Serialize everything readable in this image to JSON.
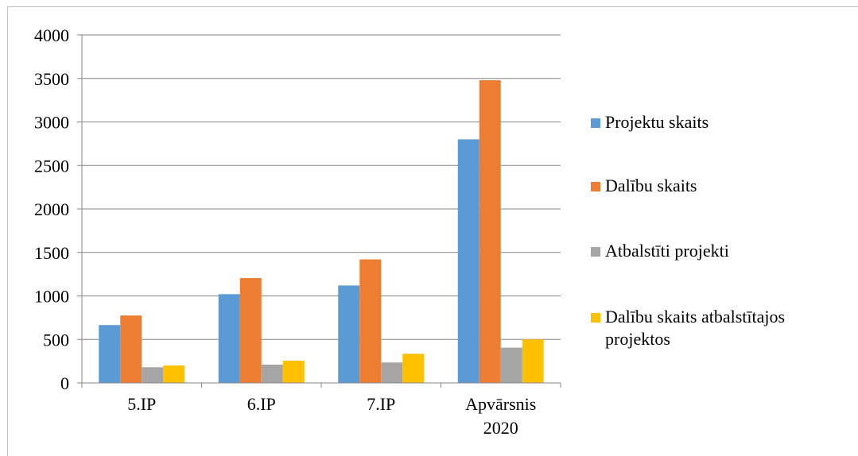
{
  "chart_data": {
    "type": "bar",
    "categories": [
      "5.IP",
      "6.IP",
      "7.IP",
      "Apvārsnis 2020"
    ],
    "series": [
      {
        "name": "Projektu skaits",
        "color": "#5B9BD5",
        "values": [
          665,
          1020,
          1120,
          2800
        ]
      },
      {
        "name": "Dalību skaits",
        "color": "#ED7D31",
        "values": [
          775,
          1205,
          1420,
          3480
        ]
      },
      {
        "name": "Atbalstīti projekti",
        "color": "#A5A5A5",
        "values": [
          180,
          210,
          235,
          405
        ]
      },
      {
        "name": "Dalību skaits atbalstītajos projektos",
        "color": "#FFC000",
        "values": [
          200,
          255,
          335,
          500
        ]
      }
    ],
    "ylim": [
      0,
      4000
    ],
    "yticks": [
      "0",
      "500",
      "1000",
      "1500",
      "2000",
      "2500",
      "3000",
      "3500",
      "4000"
    ],
    "grid": true,
    "legend_position": "right"
  }
}
